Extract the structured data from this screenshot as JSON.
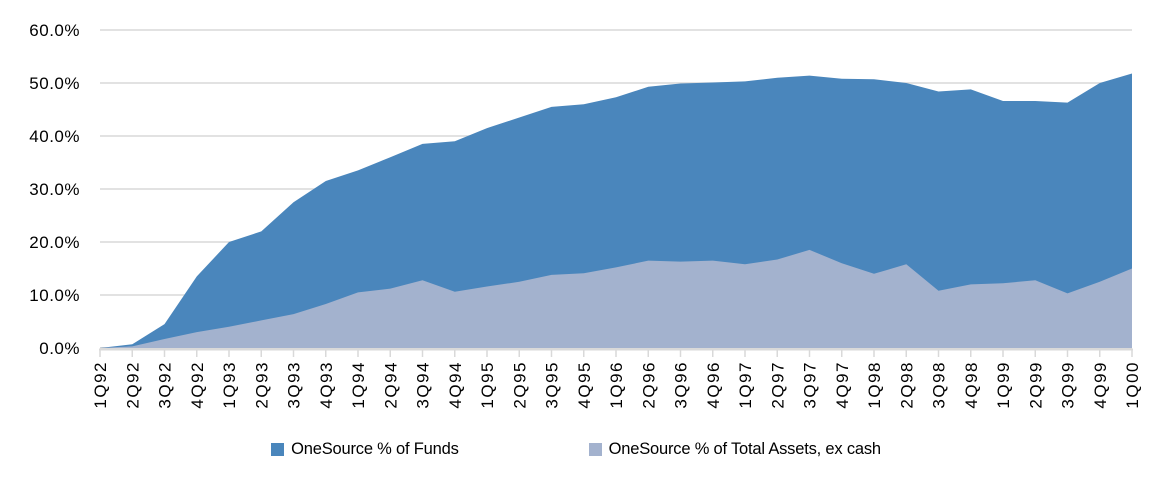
{
  "chart_data": {
    "type": "area",
    "overlay": "both series drawn from zero baseline (overlaid, not stacked); Funds behind, Assets in front",
    "title": "",
    "xlabel": "",
    "ylabel": "",
    "categories": [
      "1Q92",
      "2Q92",
      "3Q92",
      "4Q92",
      "1Q93",
      "2Q93",
      "3Q93",
      "4Q93",
      "1Q94",
      "2Q94",
      "3Q94",
      "4Q94",
      "1Q95",
      "2Q95",
      "3Q95",
      "4Q95",
      "1Q96",
      "2Q96",
      "3Q96",
      "4Q96",
      "1Q97",
      "2Q97",
      "3Q97",
      "4Q97",
      "1Q98",
      "2Q98",
      "3Q98",
      "4Q98",
      "1Q99",
      "2Q99",
      "3Q99",
      "4Q99",
      "1Q00"
    ],
    "series": [
      {
        "name": "OneSource % of Funds",
        "color": "#4A86BC",
        "values": [
          0,
          0.7,
          4.5,
          13.5,
          20,
          22,
          27.5,
          31.5,
          33.5,
          36,
          38.5,
          39,
          41.5,
          43.5,
          45.5,
          46,
          47.3,
          49.3,
          49.9,
          50.1,
          50.3,
          51,
          51.4,
          50.8,
          50.7,
          50,
          48.4,
          48.8,
          46.6,
          46.6,
          46.3,
          50,
          51.8
        ]
      },
      {
        "name": "OneSource % of Total Assets, ex cash",
        "color": "#A3B2CE",
        "values": [
          0,
          0.3,
          1.7,
          3,
          4,
          5.2,
          6.4,
          8.3,
          10.5,
          11.2,
          12.8,
          10.6,
          11.6,
          12.5,
          13.8,
          14.1,
          15.2,
          16.5,
          16.3,
          16.5,
          15.8,
          16.7,
          18.5,
          16,
          14,
          15.8,
          10.8,
          12,
          12.2,
          12.8,
          10.3,
          12.5,
          15
        ]
      }
    ],
    "ylim": [
      0,
      60
    ],
    "y_tick_labels": [
      "0.0%",
      "10.0%",
      "20.0%",
      "30.0%",
      "40.0%",
      "50.0%",
      "60.0%"
    ],
    "grid": "horizontal",
    "gridline_color": "#D9D9D9",
    "axis_line_color": "#D9D9D9",
    "tick_color": "#D9D9D9",
    "text_color": "#000000",
    "background_color": "#FFFFFF",
    "legend_position": "bottom"
  }
}
